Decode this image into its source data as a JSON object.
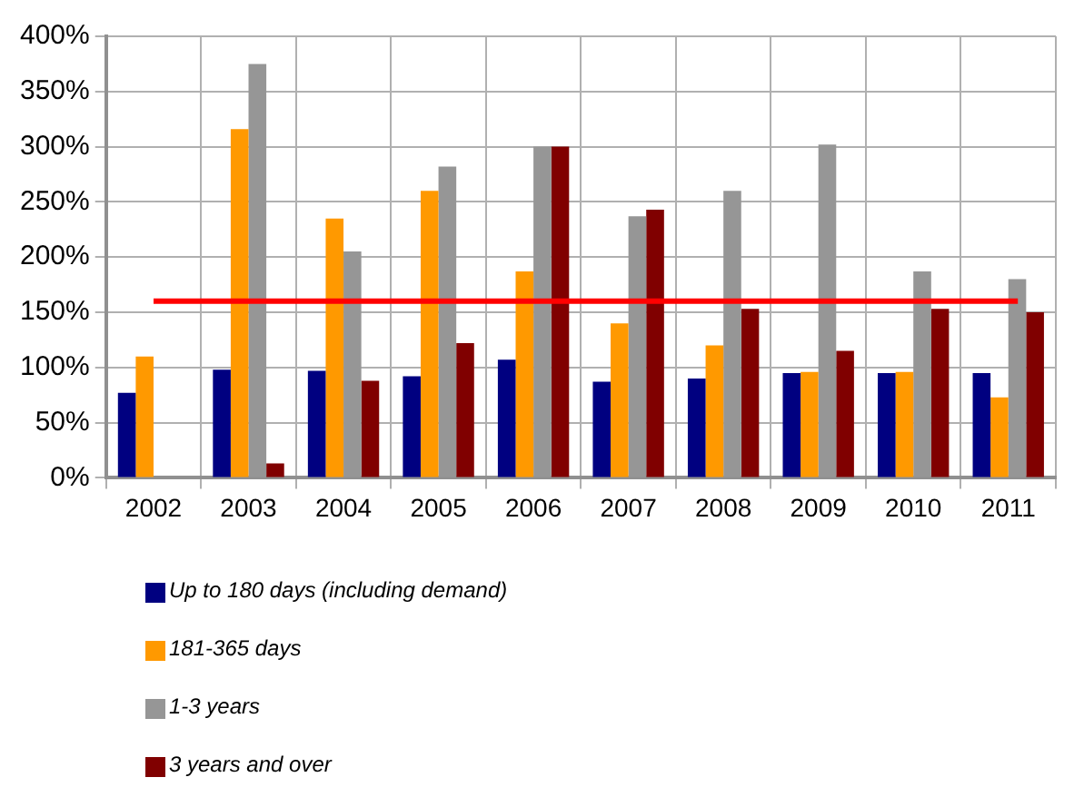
{
  "chart_data": {
    "type": "bar",
    "categories": [
      "2002",
      "2003",
      "2004",
      "2005",
      "2006",
      "2007",
      "2008",
      "2009",
      "2010",
      "2011"
    ],
    "series": [
      {
        "name": "Up to 180 days (including demand)",
        "color": "#000080",
        "values": [
          77,
          98,
          97,
          92,
          107,
          87,
          90,
          95,
          95,
          95
        ]
      },
      {
        "name": "181-365 days",
        "color": "#ff9900",
        "values": [
          110,
          316,
          235,
          260,
          187,
          140,
          120,
          96,
          96,
          73
        ]
      },
      {
        "name": "1-3 years",
        "color": "#969696",
        "values": [
          null,
          375,
          205,
          282,
          300,
          237,
          260,
          302,
          187,
          180
        ]
      },
      {
        "name": "3 years and over",
        "color": "#800000",
        "values": [
          null,
          13,
          88,
          122,
          300,
          243,
          153,
          115,
          153,
          150
        ]
      }
    ],
    "ylim": [
      0,
      400
    ],
    "yticks": [
      {
        "value": 0,
        "label": "0%"
      },
      {
        "value": 50,
        "label": "50%"
      },
      {
        "value": 100,
        "label": "100%"
      },
      {
        "value": 150,
        "label": "150%"
      },
      {
        "value": 200,
        "label": "200%"
      },
      {
        "value": 250,
        "label": "250%"
      },
      {
        "value": 300,
        "label": "300%"
      },
      {
        "value": 350,
        "label": "350%"
      },
      {
        "value": 400,
        "label": "400%"
      }
    ],
    "ref_lines": [
      {
        "axis": "y",
        "value": 160,
        "color": "#ff0000"
      }
    ],
    "grid": true,
    "legend": "bottom"
  }
}
